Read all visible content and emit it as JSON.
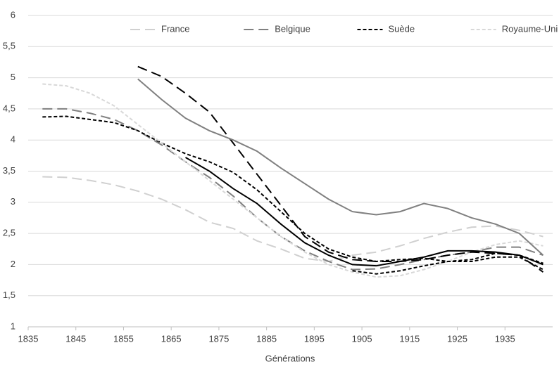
{
  "chart_data": {
    "type": "line",
    "x_label": "Générations",
    "x": [
      1838,
      1843,
      1848,
      1853,
      1858,
      1863,
      1868,
      1873,
      1878,
      1883,
      1888,
      1893,
      1898,
      1903,
      1908,
      1913,
      1918,
      1923,
      1928,
      1933,
      1938,
      1943
    ],
    "xlim": [
      1835,
      1945
    ],
    "xticks": [
      1835,
      1845,
      1855,
      1865,
      1875,
      1885,
      1895,
      1905,
      1915,
      1925,
      1935
    ],
    "ylim": [
      1,
      6
    ],
    "yticks": [
      1,
      {
        "value": 1.5,
        "label": "1,5"
      },
      2,
      {
        "value": 2.5,
        "label": "2,5"
      },
      3,
      {
        "value": 3.5,
        "label": "3,5"
      },
      4,
      {
        "value": 4.5,
        "label": "4,5"
      },
      5,
      {
        "value": 5.5,
        "label": "5,5"
      },
      6
    ],
    "grid": true,
    "legend": "top",
    "series": [
      {
        "name": "France",
        "color": "#d0d0d0",
        "dash": "long",
        "values": [
          3.41,
          3.4,
          3.35,
          3.28,
          3.18,
          3.05,
          2.88,
          2.68,
          2.58,
          2.38,
          2.25,
          2.1,
          2.05,
          2.15,
          2.2,
          2.3,
          2.42,
          2.52,
          2.6,
          2.62,
          2.55,
          2.45
        ]
      },
      {
        "name": "Belgique",
        "color": "#808080",
        "dash": "long",
        "values": [
          4.5,
          4.5,
          4.43,
          4.33,
          4.15,
          3.92,
          3.65,
          3.4,
          3.1,
          2.75,
          2.45,
          2.22,
          2.05,
          1.92,
          1.93,
          2.0,
          2.08,
          2.15,
          2.2,
          2.28,
          2.28,
          2.15
        ]
      },
      {
        "name": "Suède",
        "color": "#000000",
        "dash": "short",
        "values": [
          4.37,
          4.38,
          4.33,
          4.28,
          4.15,
          3.95,
          3.78,
          3.65,
          3.48,
          3.2,
          2.85,
          2.5,
          2.25,
          2.12,
          2.05,
          2.08,
          2.1,
          2.05,
          2.08,
          2.18,
          2.15,
          2.02
        ]
      },
      {
        "name": "Royaume-Uni",
        "color": "#d8d8d8",
        "dash": "short",
        "values": [
          4.9,
          4.87,
          4.75,
          4.55,
          4.25,
          3.95,
          3.65,
          3.35,
          3.05,
          2.75,
          2.45,
          2.2,
          2.0,
          1.88,
          1.8,
          1.82,
          1.92,
          2.05,
          2.2,
          2.32,
          2.38,
          2.3
        ]
      },
      {
        "color": "#000000",
        "dash": "long",
        "values": [
          null,
          null,
          null,
          null,
          5.18,
          5.02,
          4.75,
          4.45,
          3.95,
          3.45,
          2.95,
          2.45,
          2.2,
          2.08,
          2.05,
          2.05,
          2.08,
          2.15,
          2.2,
          2.18,
          2.15,
          1.88
        ]
      },
      {
        "color": "#808080",
        "dash": "solid",
        "values": [
          null,
          null,
          null,
          null,
          4.98,
          4.65,
          4.35,
          4.15,
          4.0,
          3.82,
          3.55,
          3.3,
          3.05,
          2.85,
          2.8,
          2.85,
          2.98,
          2.9,
          2.75,
          2.65,
          2.5,
          2.15
        ]
      },
      {
        "color": "#000000",
        "dash": "solid",
        "values": [
          null,
          null,
          null,
          null,
          null,
          null,
          3.72,
          3.5,
          3.22,
          2.98,
          2.65,
          2.35,
          2.15,
          2.0,
          1.98,
          2.05,
          2.12,
          2.22,
          2.22,
          2.2,
          2.15,
          2.0
        ]
      },
      {
        "color": "#000000",
        "dash": "short",
        "values": [
          null,
          null,
          null,
          null,
          null,
          null,
          null,
          null,
          null,
          null,
          null,
          null,
          null,
          1.9,
          1.85,
          1.9,
          1.98,
          2.05,
          2.05,
          2.12,
          2.12,
          1.92
        ]
      }
    ]
  }
}
